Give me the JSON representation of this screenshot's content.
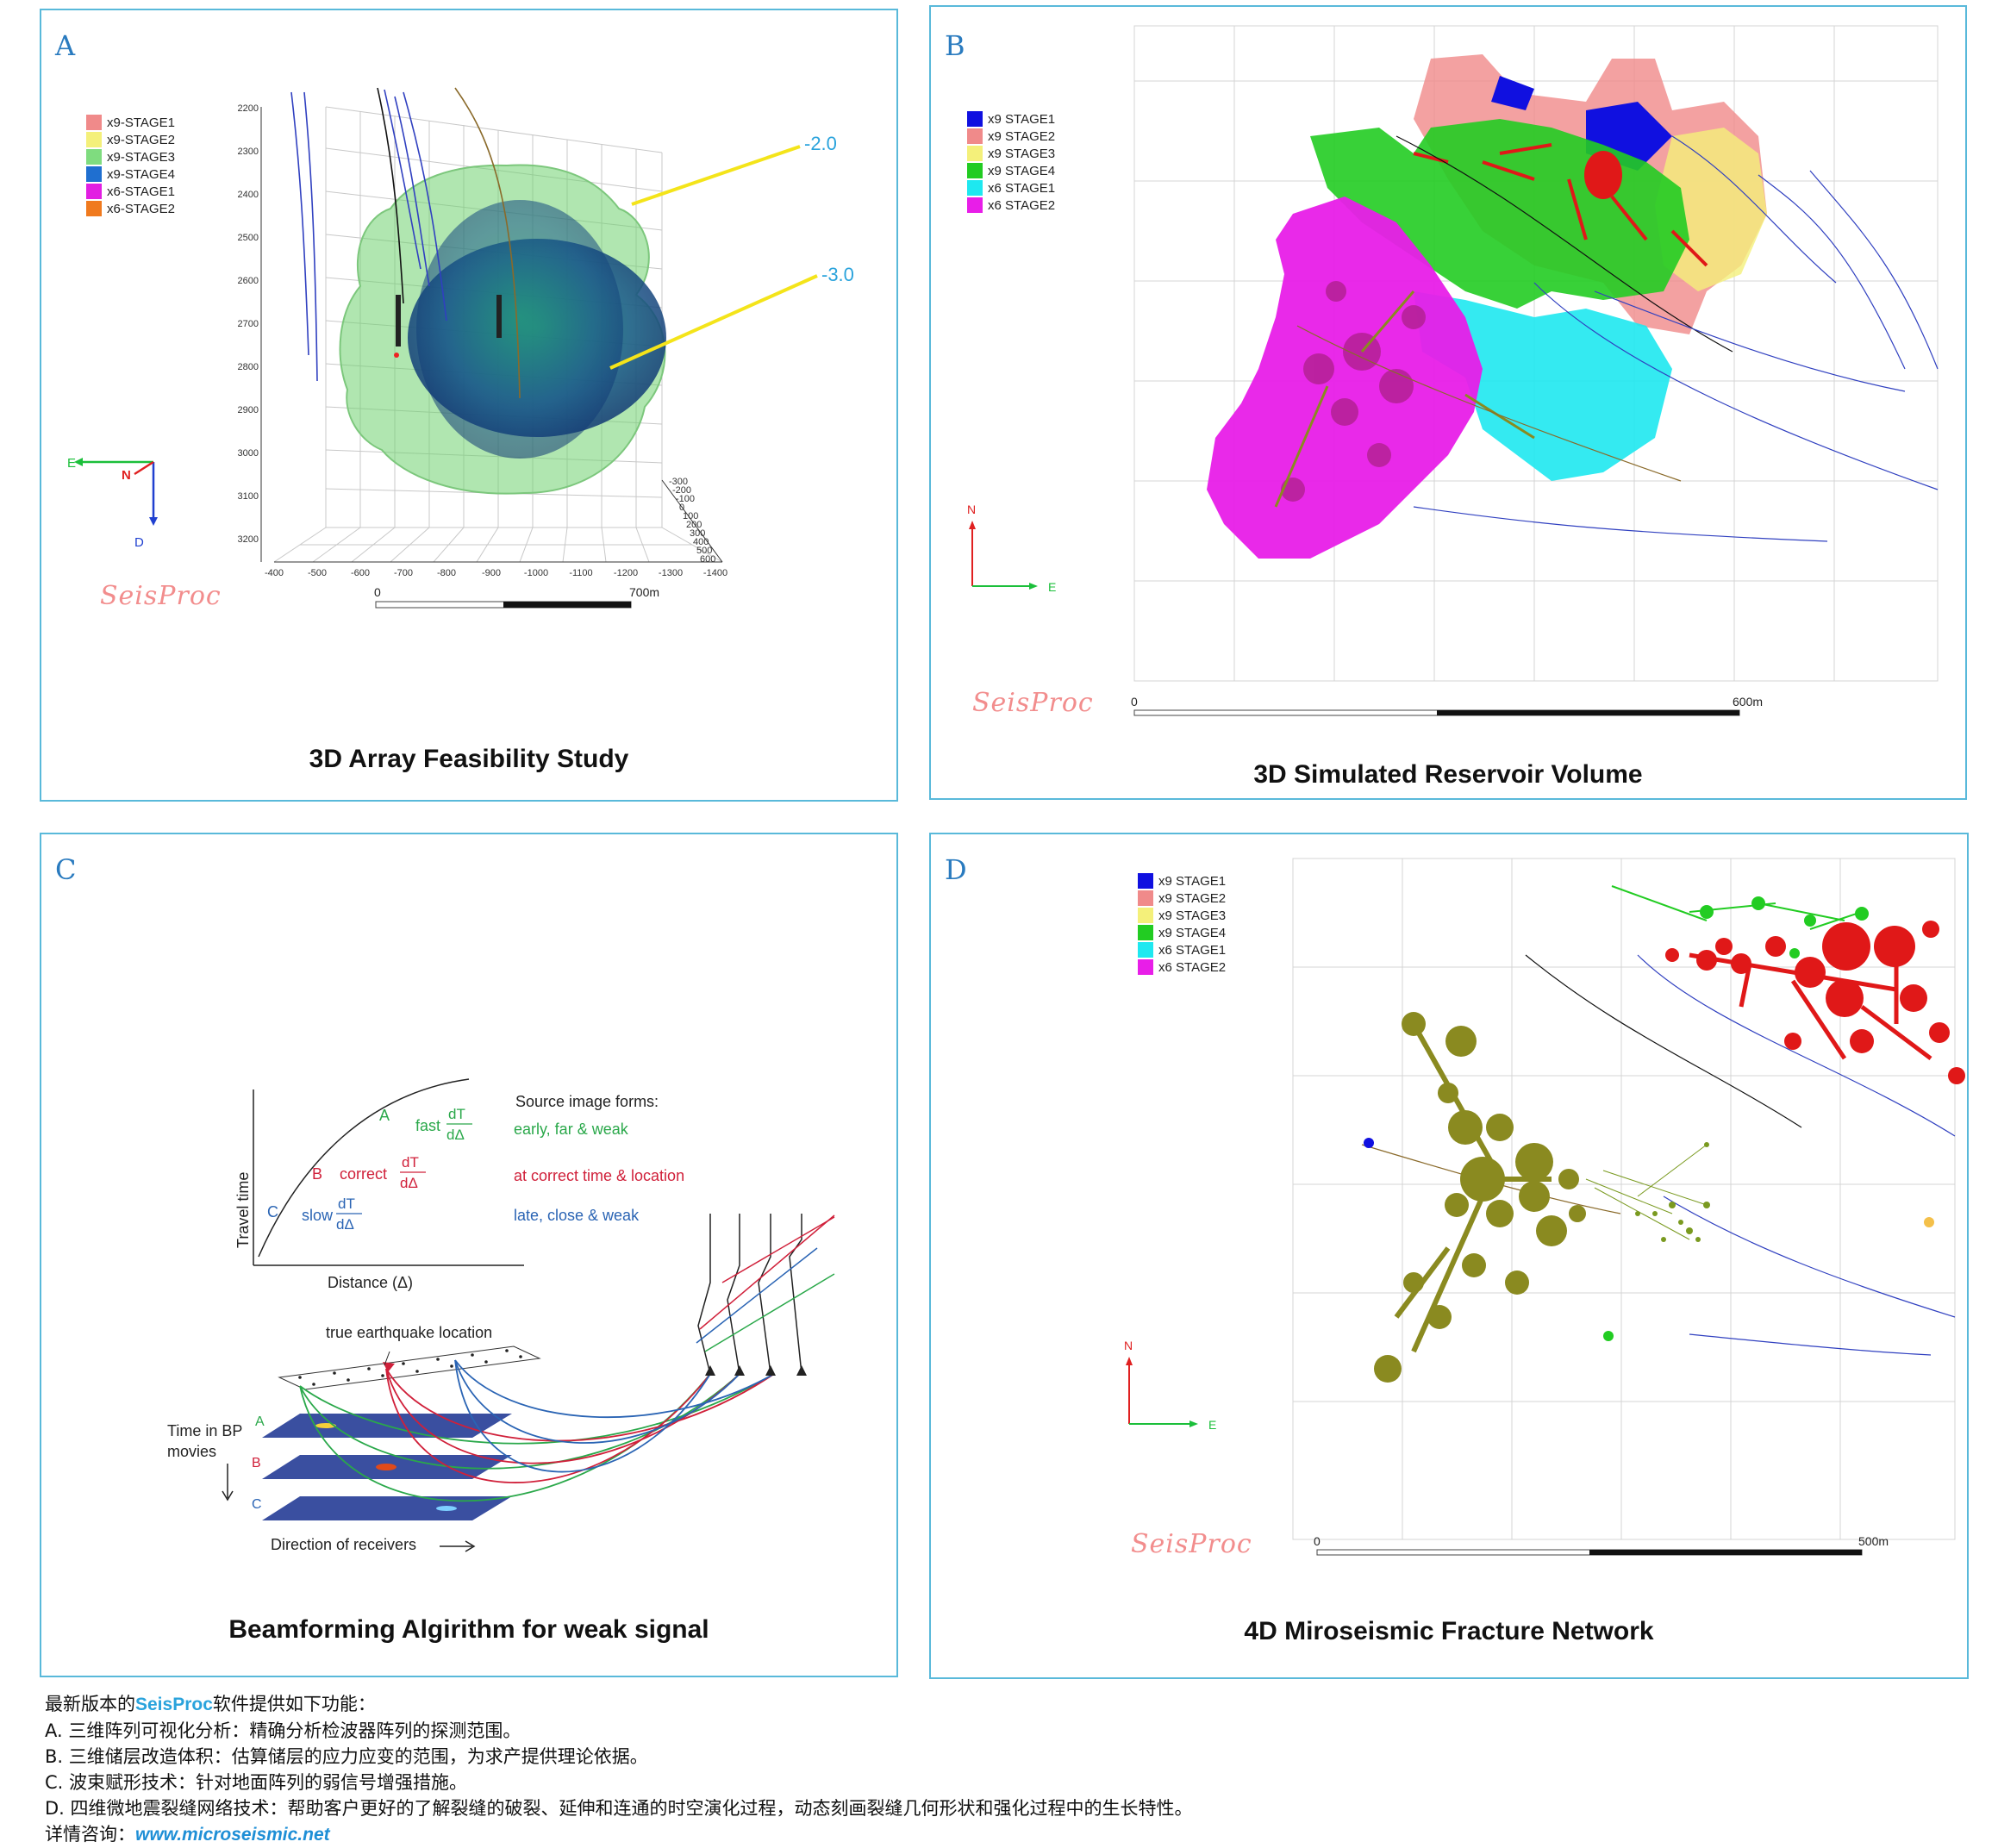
{
  "panels": {
    "a": {
      "letter": "A",
      "title": "3D Array Feasibility Study",
      "legend": [
        {
          "label": "x9-STAGE1",
          "color": "#f08a8a"
        },
        {
          "label": "x9-STAGE2",
          "color": "#f4f07a"
        },
        {
          "label": "x9-STAGE3",
          "color": "#7fdc7f"
        },
        {
          "label": "x9-STAGE4",
          "color": "#1f6fd0"
        },
        {
          "label": "x6-STAGE1",
          "color": "#e21ee2"
        },
        {
          "label": "x6-STAGE2",
          "color": "#f07a1e"
        }
      ],
      "contour_labels": [
        "-2.0",
        "-3.0"
      ],
      "depth_ticks": [
        "2200",
        "2300",
        "2400",
        "2500",
        "2600",
        "2700",
        "2800",
        "2900",
        "3000",
        "3100",
        "3200"
      ],
      "x_ticks": [
        "-400",
        "-500",
        "-600",
        "-700",
        "-800",
        "-900",
        "-1000",
        "-1100",
        "-1200",
        "-1300",
        "-1400"
      ],
      "y_ticks": [
        "-300",
        "-200",
        "-100",
        "0",
        "100",
        "200",
        "300",
        "400",
        "500",
        "600"
      ],
      "compass": {
        "e": "E",
        "n": "N",
        "d": "D"
      },
      "scale": {
        "start": "0",
        "end": "700m"
      },
      "logo": "SeisProc"
    },
    "b": {
      "letter": "B",
      "title": "3D Simulated Reservoir Volume",
      "legend": [
        {
          "label": "x9 STAGE1",
          "color": "#1010e0"
        },
        {
          "label": "x9 STAGE2",
          "color": "#f08a8a"
        },
        {
          "label": "x9 STAGE3",
          "color": "#f4f07a"
        },
        {
          "label": "x9 STAGE4",
          "color": "#22cc22"
        },
        {
          "label": "x6 STAGE1",
          "color": "#1ee8f0"
        },
        {
          "label": "x6 STAGE2",
          "color": "#e81ee8"
        }
      ],
      "compass": {
        "n": "N",
        "e": "E"
      },
      "scale": {
        "start": "0",
        "end": "600m"
      },
      "logo": "SeisProc"
    },
    "c": {
      "letter": "C",
      "title": "Beamforming Algirithm for weak signal",
      "y_axis": "Travel time",
      "x_axis": "Distance (Δ)",
      "points": {
        "a": "A",
        "b": "B",
        "c": "C"
      },
      "rates": {
        "fast": "fast",
        "correct": "correct",
        "slow": "slow",
        "num": "dT",
        "den": "dΔ"
      },
      "source_heading": "Source image forms:",
      "forms": [
        "early, far & weak",
        "at correct time & location",
        "late, close & weak"
      ],
      "true_location": "true earthquake location",
      "time_label_1": "Time in BP",
      "time_label_2": "movies",
      "receivers": "Direction of receivers",
      "colors": {
        "green": "#2aa84a",
        "red": "#d0203a",
        "blue": "#2a64b4"
      }
    },
    "d": {
      "letter": "D",
      "title": "4D Miroseismic Fracture Network",
      "legend": [
        {
          "label": "x9 STAGE1",
          "color": "#1010e0"
        },
        {
          "label": "x9 STAGE2",
          "color": "#f08a8a"
        },
        {
          "label": "x9 STAGE3",
          "color": "#f4f07a"
        },
        {
          "label": "x9 STAGE4",
          "color": "#22cc22"
        },
        {
          "label": "x6 STAGE1",
          "color": "#1ee8f0"
        },
        {
          "label": "x6 STAGE2",
          "color": "#e81ee8"
        }
      ],
      "compass": {
        "n": "N",
        "e": "E"
      },
      "scale": {
        "start": "0",
        "end": "500m"
      },
      "logo": "SeisProc"
    }
  },
  "footer": {
    "intro_prefix": "最新版本的",
    "brand": "SeisProc",
    "intro_suffix": "软件提供如下功能：",
    "lines": [
      "A. 三维阵列可视化分析：精确分析检波器阵列的探测范围。",
      "B. 三维储层改造体积：估算储层的应力应变的范围，为求产提供理论依据。",
      "C. 波束赋形技术：针对地面阵列的弱信号增强措施。",
      "D. 四维微地震裂缝网络技术：帮助客户更好的了解裂缝的破裂、延伸和连通的时空演化过程，动态刻画裂缝几何形状和强化过程中的生长特性。"
    ],
    "contact_label": "详情咨询：",
    "website": "www.microseismic.net"
  }
}
